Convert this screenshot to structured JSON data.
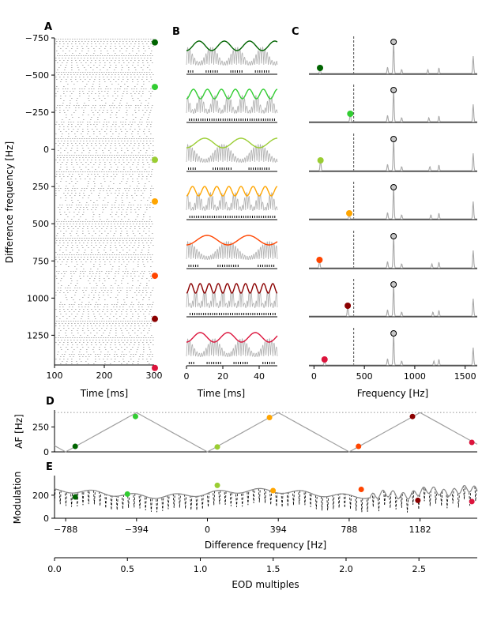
{
  "panels": {
    "A": "A",
    "B": "B",
    "C": "C",
    "D": "D",
    "E": "E"
  },
  "colors": [
    "#006400",
    "#32cd32",
    "#9acd32",
    "#ffa500",
    "#ff4500",
    "#8b0000",
    "#dc143c"
  ],
  "chart_data": [
    {
      "panel": "A",
      "type": "raster",
      "xlabel": "Time [ms]",
      "ylabel": "Difference frequency [Hz]",
      "xlim": [
        100,
        300
      ],
      "ylim": [
        -750,
        1450
      ],
      "y_inverted": true,
      "xticks": [
        100,
        200,
        300
      ],
      "yticks": [
        -750,
        -500,
        -250,
        0,
        250,
        500,
        750,
        1000,
        1250
      ],
      "marker_df": [
        -720,
        -420,
        70,
        350,
        850,
        1140,
        1470
      ]
    },
    {
      "panel": "B",
      "type": "line",
      "xlabel": "Time [ms]",
      "xlim": [
        0,
        50
      ],
      "xticks": [
        0,
        20,
        40
      ],
      "rows": 7,
      "envelope_cycles": [
        3.6,
        6.5,
        2.5,
        7.5,
        2.2,
        10,
        3.3
      ]
    },
    {
      "panel": "C",
      "type": "line",
      "xlabel": "Frequency [Hz]",
      "xlim": [
        -50,
        1620
      ],
      "xticks": [
        0,
        500,
        1000,
        1500
      ],
      "eod_frequency": 790,
      "dashed_line_x": 395,
      "afr_peaks_hz": [
        60,
        360,
        65,
        350,
        55,
        335,
        105
      ]
    },
    {
      "panel": "D",
      "type": "line",
      "ylabel": "AF [Hz]",
      "ylim": [
        0,
        420
      ],
      "yticks": [
        0,
        250
      ],
      "dotted_line_y": 395,
      "points": [
        {
          "df": -735,
          "af": 55
        },
        {
          "df": -400,
          "af": 355
        },
        {
          "df": 55,
          "af": 50
        },
        {
          "df": 345,
          "af": 345
        },
        {
          "df": 840,
          "af": 55
        },
        {
          "df": 1140,
          "af": 355
        },
        {
          "df": 1470,
          "af": 95
        }
      ]
    },
    {
      "panel": "E",
      "type": "line",
      "xlabel": "Difference frequency [Hz]",
      "ylabel": "Modulation",
      "xlim": [
        -850,
        1500
      ],
      "ylim": [
        0,
        370
      ],
      "xticks": [
        -788,
        -394,
        0,
        394,
        788,
        1182
      ],
      "yticks": [
        0,
        200
      ],
      "points": [
        {
          "df": -735,
          "mod": 185
        },
        {
          "df": -445,
          "mod": 210
        },
        {
          "df": 55,
          "mod": 285
        },
        {
          "df": 365,
          "mod": 240
        },
        {
          "df": 855,
          "mod": 250
        },
        {
          "df": 1170,
          "mod": 155
        },
        {
          "df": 1470,
          "mod": 145
        }
      ]
    },
    {
      "panel": "axis",
      "type": "axis",
      "xlabel": "EOD multiples",
      "xticks": [
        0.0,
        0.5,
        1.0,
        1.5,
        2.0,
        2.5
      ]
    }
  ]
}
